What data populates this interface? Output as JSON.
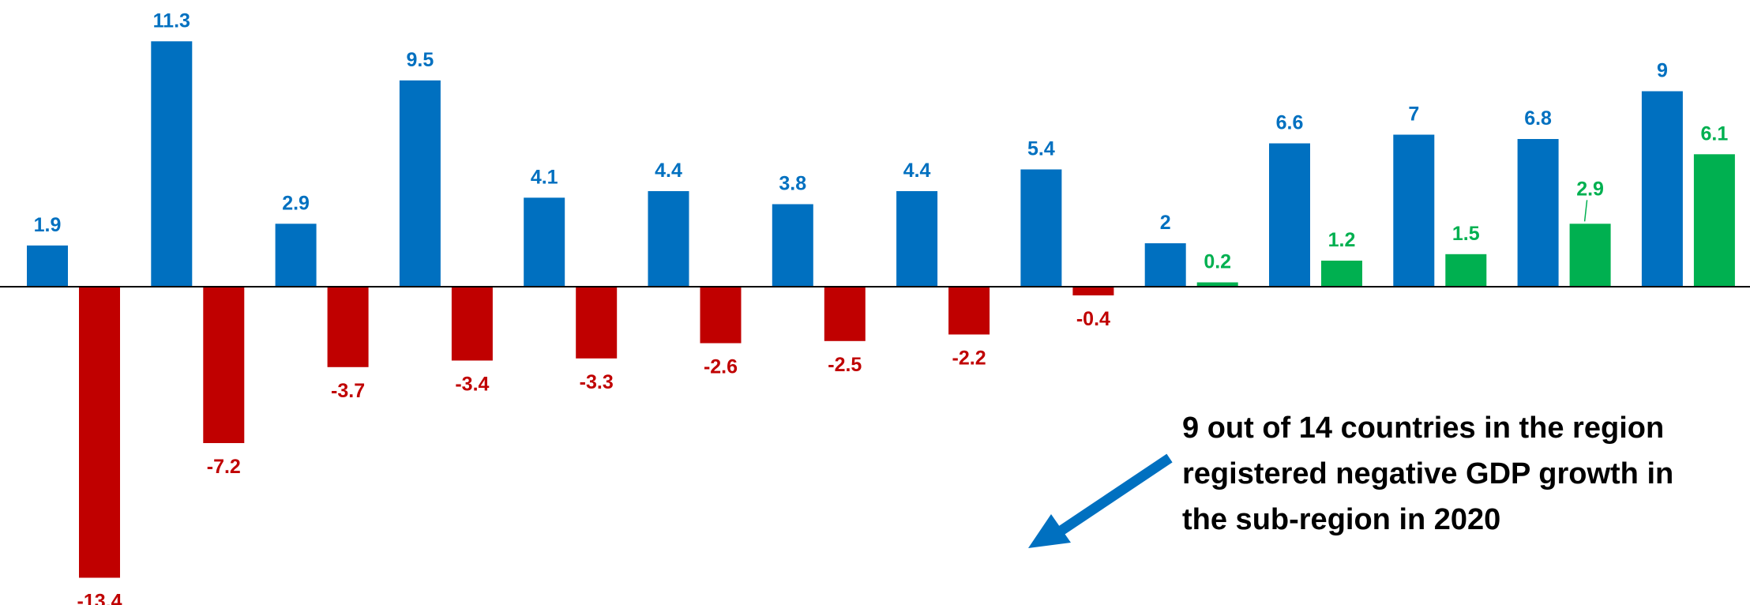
{
  "chart_data": {
    "type": "bar",
    "title": "",
    "xlabel": "",
    "ylabel": "",
    "ylim": [
      -14,
      12
    ],
    "grid": false,
    "legend": "none",
    "groups": 14,
    "series": [
      {
        "color": "#0070C0",
        "values": [
          1.9,
          11.3,
          2.9,
          9.5,
          4.1,
          4.4,
          3.8,
          4.4,
          5.4,
          2,
          6.6,
          7,
          6.8,
          9
        ]
      },
      {
        "color_negative": "#C00000",
        "color_positive": "#00B050",
        "values": [
          -13.4,
          -7.2,
          -3.7,
          -3.4,
          -3.3,
          -2.6,
          -2.5,
          -2.2,
          -0.4,
          0.2,
          1.2,
          1.5,
          2.9,
          6.1
        ]
      }
    ],
    "annotation": {
      "lines": [
        "9 out of 14 countries in the region",
        "registered negative GDP growth in",
        "the sub-region in 2020"
      ],
      "arrow_color": "#0070C0",
      "arrow_icon": "arrow-down-left-icon"
    }
  }
}
